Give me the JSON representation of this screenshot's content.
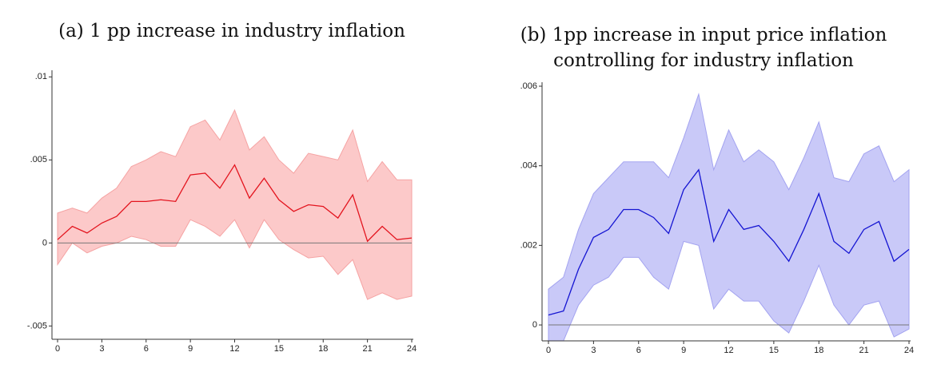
{
  "chart_data": [
    {
      "type": "line",
      "title": [
        "(a) 1 pp increase in industry inflation"
      ],
      "x": [
        0,
        1,
        2,
        3,
        4,
        5,
        6,
        7,
        8,
        9,
        10,
        11,
        12,
        13,
        14,
        15,
        16,
        17,
        18,
        19,
        20,
        21,
        22,
        23,
        24
      ],
      "values": [
        0.0002,
        0.001,
        0.0006,
        0.0012,
        0.0016,
        0.0025,
        0.0025,
        0.0026,
        0.0025,
        0.0041,
        0.0042,
        0.0033,
        0.0047,
        0.0027,
        0.0039,
        0.0026,
        0.0019,
        0.0023,
        0.0022,
        0.0015,
        0.0029,
        0.0001,
        0.001,
        0.0002,
        0.0003
      ],
      "upper": [
        0.0018,
        0.0021,
        0.0018,
        0.0027,
        0.0033,
        0.0046,
        0.005,
        0.0055,
        0.0052,
        0.007,
        0.0074,
        0.0062,
        0.008,
        0.0056,
        0.0064,
        0.005,
        0.0042,
        0.0054,
        0.0052,
        0.005,
        0.0068,
        0.0037,
        0.0049,
        0.0038,
        0.0038
      ],
      "lower": [
        -0.0013,
        0.0,
        -0.0006,
        -0.0002,
        0.0,
        0.0004,
        0.0002,
        -0.0002,
        -0.0002,
        0.0014,
        0.001,
        0.0004,
        0.0014,
        -0.0003,
        0.0014,
        0.0002,
        -0.0004,
        -0.0009,
        -0.0008,
        -0.0019,
        -0.001,
        -0.0034,
        -0.003,
        -0.0034,
        -0.0032
      ],
      "color": "#e3141e",
      "band_color": "#fcc9c9",
      "band_edge_color": "#f5a3a3",
      "hline": 0,
      "xlim": [
        0,
        24
      ],
      "xticks": [
        0,
        3,
        6,
        9,
        12,
        15,
        18,
        21,
        24
      ],
      "ylim": [
        -0.0058,
        0.0104
      ],
      "yticks": [
        {
          "value": -0.005,
          "label": "-.005"
        },
        0,
        {
          "value": 0.005,
          "label": ".005"
        },
        {
          "value": 0.01,
          "label": ".01"
        }
      ]
    },
    {
      "type": "line",
      "title": [
        "(b) 1pp increase in input price inflation",
        "controlling for industry inflation"
      ],
      "x": [
        0,
        1,
        2,
        3,
        4,
        5,
        6,
        7,
        8,
        9,
        10,
        11,
        12,
        13,
        14,
        15,
        16,
        17,
        18,
        19,
        20,
        21,
        22,
        23,
        24
      ],
      "values": [
        0.00025,
        0.00035,
        0.0014,
        0.0022,
        0.0024,
        0.0029,
        0.0029,
        0.0027,
        0.0023,
        0.0034,
        0.0039,
        0.0021,
        0.0029,
        0.0024,
        0.0025,
        0.0021,
        0.0016,
        0.0024,
        0.0033,
        0.0021,
        0.0018,
        0.0024,
        0.0026,
        0.0016,
        0.0019
      ],
      "upper": [
        0.0009,
        0.0012,
        0.0024,
        0.0033,
        0.0037,
        0.0041,
        0.0041,
        0.0041,
        0.0037,
        0.0047,
        0.0058,
        0.0039,
        0.0049,
        0.0041,
        0.0044,
        0.0041,
        0.0034,
        0.0042,
        0.0051,
        0.0037,
        0.0036,
        0.0043,
        0.0045,
        0.0036,
        0.0039
      ],
      "lower": [
        -0.0004,
        -0.0004,
        0.0005,
        0.001,
        0.0012,
        0.0017,
        0.0017,
        0.0012,
        0.0009,
        0.0021,
        0.002,
        0.0004,
        0.0009,
        0.0006,
        0.0006,
        0.0001,
        -0.0002,
        0.0006,
        0.0015,
        0.0005,
        0.0,
        0.0005,
        0.0006,
        -0.0003,
        -0.0001
      ],
      "color": "#1414d2",
      "band_color": "#c9c9f8",
      "band_edge_color": "#a3a3f0",
      "hline": 0,
      "xlim": [
        0,
        24
      ],
      "xticks": [
        0,
        3,
        6,
        9,
        12,
        15,
        18,
        21,
        24
      ],
      "ylim": [
        -0.0004,
        0.0061
      ],
      "yticks": [
        0,
        {
          "value": 0.002,
          "label": ".002"
        },
        {
          "value": 0.004,
          "label": ".004"
        },
        {
          "value": 0.006,
          "label": ".006"
        }
      ]
    }
  ]
}
